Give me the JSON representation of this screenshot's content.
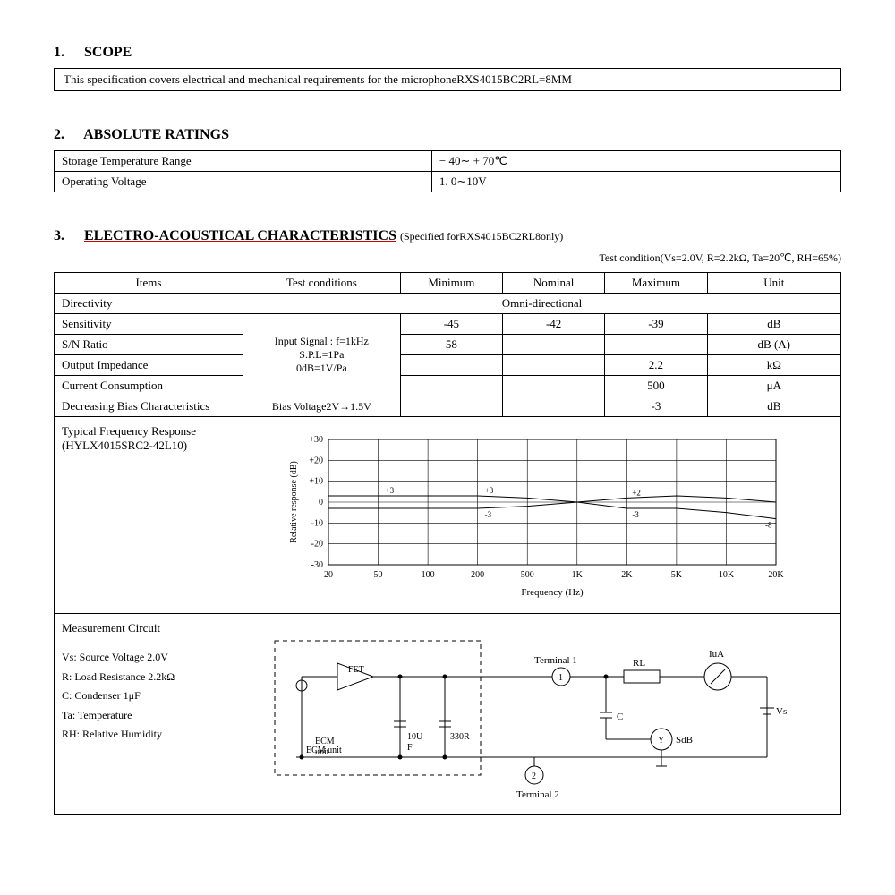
{
  "sections": {
    "scope": {
      "num": "1.",
      "title": "SCOPE",
      "text": "This specification covers electrical and mechanical requirements for the microphoneRXS4015BC2RL=8MM"
    },
    "ratings": {
      "num": "2.",
      "title": "ABSOLUTE RATINGS",
      "rows": [
        {
          "label": "Storage Temperature Range",
          "value": "− 40∼ + 70℃"
        },
        {
          "label": "Operating Voltage",
          "value": "1. 0∼10V"
        }
      ]
    },
    "electro": {
      "num": "3.",
      "title": "ELECTRO-ACOUSTICAL CHARACTERISTICS",
      "note": "(Specified forRXS4015BC2RL8only)",
      "test_condition": "Test condition(Vs=2.0V, R=2.2kΩ, Ta=20℃, RH=65%)",
      "headers": [
        "Items",
        "Test conditions",
        "Minimum",
        "Nominal",
        "Maximum",
        "Unit"
      ],
      "directivity_label": "Directivity",
      "directivity_value": "Omni-directional",
      "sensitivity": {
        "label": "Sensitivity",
        "min": "-45",
        "nom": "-42",
        "max": "-39",
        "unit": "dB"
      },
      "shared_cond": "Input Signal : f=1kHz\nS.P.L=1Pa\n0dB=1V/Pa",
      "sn_ratio": {
        "label": "S/N Ratio",
        "min": "58",
        "nom": "",
        "max": "",
        "unit": "dB (A)"
      },
      "impedance": {
        "label": "Output Impedance",
        "min": "",
        "nom": "",
        "max": "2.2",
        "unit": "kΩ"
      },
      "current": {
        "label": "Current Consumption",
        "min": "",
        "nom": "",
        "max": "500",
        "unit": "μA"
      },
      "bias": {
        "label": "Decreasing Bias Characteristics",
        "cond": "Bias Voltage2V→1.5V",
        "min": "",
        "nom": "",
        "max": "-3",
        "unit": "dB"
      },
      "freq_label": "Typical Frequency Response\n(HYLX4015SRC2-42L10)",
      "circuit_label": "Measurement Circuit",
      "params": [
        "Vs: Source Voltage 2.0V",
        "R: Load Resistance 2.2kΩ",
        "C: Condenser 1μF",
        "Ta: Temperature",
        "RH: Relative Humidity"
      ]
    }
  },
  "chart": {
    "type": "line",
    "x_label": "Frequency (Hz)",
    "y_label": "Relative response (dB)",
    "x_ticks": [
      "20",
      "50",
      "100",
      "200",
      "500",
      "1K",
      "2K",
      "5K",
      "10K",
      "20K"
    ],
    "y_ticks": [
      "-30",
      "-20",
      "-10",
      "0",
      "+10",
      "+20",
      "+30"
    ],
    "ylim": [
      -30,
      30
    ],
    "grid_color": "#000",
    "background_color": "#fff",
    "line_color": "#000",
    "line_width": 1,
    "curves": {
      "upper": [
        [
          "20",
          3
        ],
        [
          "50",
          3
        ],
        [
          "100",
          3
        ],
        [
          "200",
          3
        ],
        [
          "500",
          2
        ],
        [
          "1K",
          0
        ],
        [
          "2K",
          2
        ],
        [
          "5K",
          3
        ],
        [
          "10K",
          2
        ],
        [
          "20K",
          0
        ]
      ],
      "lower": [
        [
          "20",
          -3
        ],
        [
          "50",
          -3
        ],
        [
          "100",
          -3
        ],
        [
          "200",
          -3
        ],
        [
          "500",
          -2
        ],
        [
          "1K",
          0
        ],
        [
          "2K",
          -3
        ],
        [
          "5K",
          -3
        ],
        [
          "10K",
          -5
        ],
        [
          "20K",
          -8
        ]
      ]
    },
    "inline_labels": {
      "plus3": "+3",
      "minus3": "-3",
      "plus2": "+2",
      "minus8": "-8"
    }
  },
  "circuit": {
    "labels": {
      "fet": "FET",
      "ecm": "ECM\nunit",
      "cap1": "10U\nF",
      "res1": "330R",
      "term1": "Terminal 1",
      "term2": "Terminal 2",
      "rl": "RL",
      "iua": "IuA",
      "c": "C",
      "sdb": "SdB",
      "vs": "Vs",
      "one": "1",
      "two": "2",
      "y": "Y"
    }
  }
}
